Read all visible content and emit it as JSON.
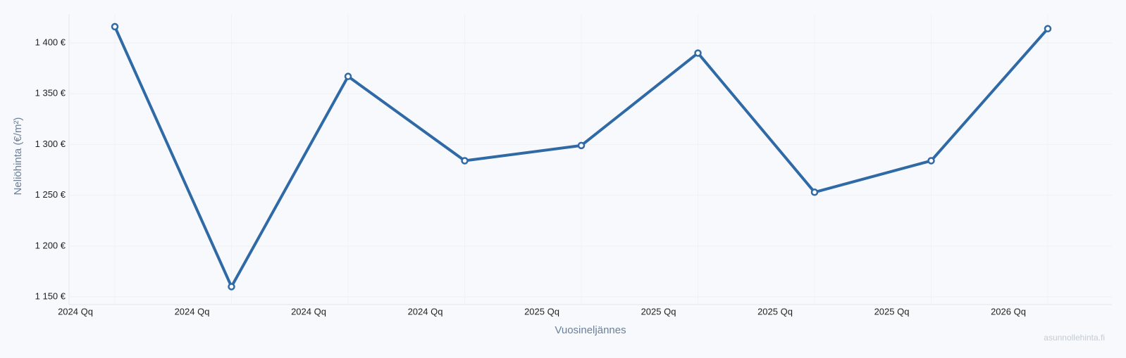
{
  "chart_data": {
    "type": "line",
    "x_label": "Vuosineljännes",
    "y_label": "Neliöhinta (€/m²)",
    "watermark": "asunnollehinta.fi",
    "categories": [
      "2024 Qq",
      "2024 Qq",
      "2024 Qq",
      "2024 Qq",
      "2025 Qq",
      "2025 Qq",
      "2025 Qq",
      "2025 Qq",
      "2026 Qq"
    ],
    "series": [
      {
        "name": "Neliöhinta",
        "color": "#2f6aa6",
        "values": [
          1416,
          1160,
          1367,
          1284,
          1299,
          1390,
          1253,
          1284,
          1414
        ]
      }
    ],
    "ylim": [
      1142.4,
      1428.4
    ],
    "yticks": [
      {
        "value": 1150,
        "label": "1 150 €"
      },
      {
        "value": 1200,
        "label": "1 200 €"
      },
      {
        "value": 1250,
        "label": "1 250 €"
      },
      {
        "value": 1300,
        "label": "1 300 €"
      },
      {
        "value": 1350,
        "label": "1 350 €"
      },
      {
        "value": 1400,
        "label": "1 400 €"
      }
    ],
    "grid": true
  }
}
